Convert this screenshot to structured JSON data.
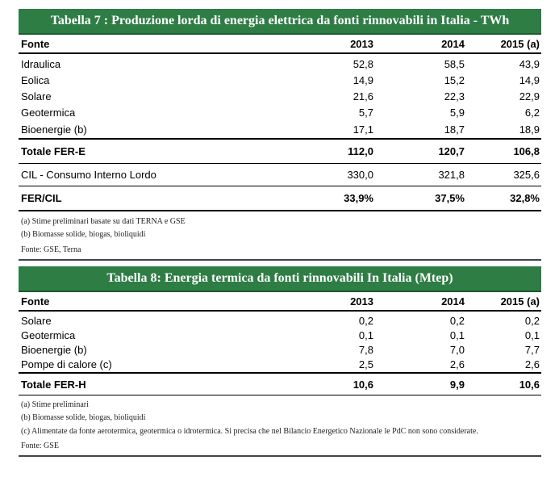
{
  "table7": {
    "title": "Tabella 7 :  Produzione lorda di energia elettrica da fonti rinnovabili in Italia - TWh",
    "headers": [
      "Fonte",
      "2013",
      "2014",
      "2015 (a)"
    ],
    "rows": [
      [
        "Idraulica",
        "52,8",
        "58,5",
        "43,9"
      ],
      [
        "Eolica",
        "14,9",
        "15,2",
        "14,9"
      ],
      [
        "Solare",
        "21,6",
        "22,3",
        "22,9"
      ],
      [
        "Geotermica",
        "5,7",
        "5,9",
        "6,2"
      ],
      [
        "Bioenergie (b)",
        "17,1",
        "18,7",
        "18,9"
      ]
    ],
    "total": [
      "Totale FER-E",
      "112,0",
      "120,7",
      "106,8"
    ],
    "cil": [
      "CIL - Consumo Interno Lordo",
      "330,0",
      "321,8",
      "325,6"
    ],
    "ratio": [
      "FER/CIL",
      "33,9%",
      "37,5%",
      "32,8%"
    ],
    "notes": [
      "(a) Stime preliminari basate su dati TERNA e GSE",
      "(b) Biomasse solide, biogas, bioliquidi",
      "Fonte: GSE, Terna"
    ]
  },
  "table8": {
    "title": "Tabella 8:  Energia termica da fonti rinnovabili In Italia (Mtep)",
    "headers": [
      "Fonte",
      "2013",
      "2014",
      "2015 (a)"
    ],
    "rows": [
      [
        "Solare",
        "0,2",
        "0,2",
        "0,2"
      ],
      [
        "Geotermica",
        "0,1",
        "0,1",
        "0,1"
      ],
      [
        "Bioenergie (b)",
        "7,8",
        "7,0",
        "7,7"
      ],
      [
        "Pompe di calore (c)",
        "2,5",
        "2,6",
        "2,6"
      ]
    ],
    "total": [
      "Totale FER-H",
      "10,6",
      "9,9",
      "10,6"
    ],
    "notes": [
      "(a) Stime preliminari",
      "(b) Biomasse solide, biogas, bioliquidi",
      "(c) Alimentate da fonte aerotermica, geotermica o idrotermica. Si precisa che nel Bilancio Energetico Nazionale le PdC non sono considerate.",
      "Fonte: GSE"
    ]
  }
}
